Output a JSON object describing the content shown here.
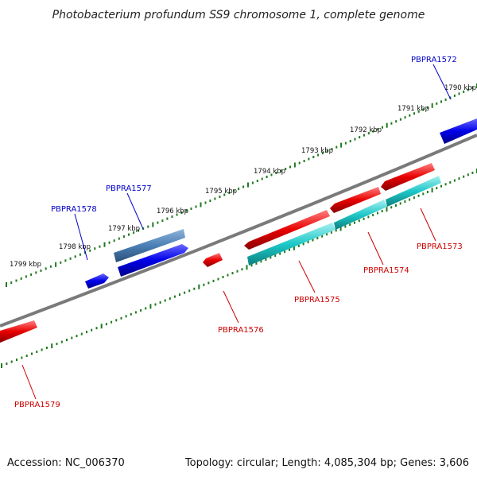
{
  "title": "Photobacterium profundum SS9 chromosome 1, complete genome",
  "footer": {
    "accession": "Accession: NC_006370",
    "summary": "Topology: circular; Length: 4,085,304 bp; Genes: 3,606"
  },
  "colors": {
    "backbone": "#7a7a7a",
    "tick": "#1d7a1d",
    "forward_gene": "#0000e8",
    "forward_gene_alt": "#4a7fb5",
    "reverse_gene": "#e80000",
    "reverse_cds": "#1ec8c8",
    "label_forward": "#0000cc",
    "label_reverse": "#cc0000"
  },
  "scale_labels": [
    "1790 kbp",
    "1791 kbp",
    "1792 kbp",
    "1793 kbp",
    "1794 kbp",
    "1795 kbp",
    "1796 kbp",
    "1797 kbp",
    "1798 kbp",
    "1799 kbp"
  ],
  "gene_labels": [
    {
      "text": "PBPRA1572",
      "strand": "forward"
    },
    {
      "text": "PBPRA1573",
      "strand": "reverse"
    },
    {
      "text": "PBPRA1574",
      "strand": "reverse"
    },
    {
      "text": "PBPRA1575",
      "strand": "reverse"
    },
    {
      "text": "PBPRA1576",
      "strand": "reverse"
    },
    {
      "text": "PBPRA1577",
      "strand": "forward"
    },
    {
      "text": "PBPRA1578",
      "strand": "forward"
    },
    {
      "text": "PBPRA1579",
      "strand": "reverse"
    }
  ]
}
